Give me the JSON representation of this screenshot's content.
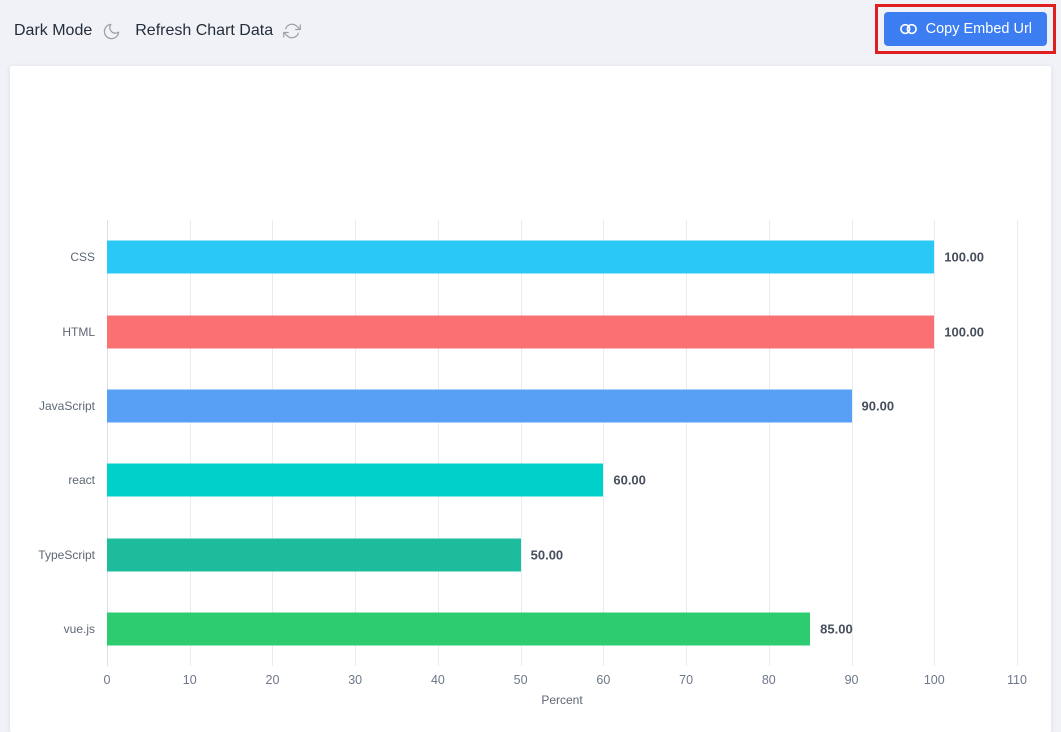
{
  "toolbar": {
    "dark_mode_label": "Dark Mode",
    "refresh_label": "Refresh Chart Data",
    "copy_embed_label": "Copy Embed Url"
  },
  "colors": {
    "page_bg": "#f0f2f7",
    "card_bg": "#ffffff",
    "button_bg": "#3c7ef2",
    "annotation_red": "#e02020",
    "grid_line": "#e9ebf0",
    "axis_line": "#dce0e8",
    "tick_text": "#6d7789",
    "category_text": "#5e6775",
    "value_text": "#474e5c",
    "toolbar_icon": "#9aa0a8"
  },
  "chart_data": {
    "type": "bar",
    "orientation": "horizontal",
    "title": "",
    "xlabel": "Percent",
    "ylabel": "",
    "xlim": [
      0,
      110
    ],
    "xticks": [
      0,
      10,
      20,
      30,
      40,
      50,
      60,
      70,
      80,
      90,
      100,
      110
    ],
    "grid": true,
    "legend": false,
    "categories": [
      "CSS",
      "HTML",
      "JavaScript",
      "react",
      "TypeScript",
      "vue.js"
    ],
    "values": [
      100,
      100,
      90,
      60,
      50,
      85
    ],
    "value_labels": [
      "100.00",
      "100.00",
      "90.00",
      "60.00",
      "50.00",
      "85.00"
    ],
    "bar_colors": [
      "#29c8f5",
      "#fb7173",
      "#57a0f5",
      "#00d0ca",
      "#1cbc9c",
      "#2ecc71"
    ]
  }
}
